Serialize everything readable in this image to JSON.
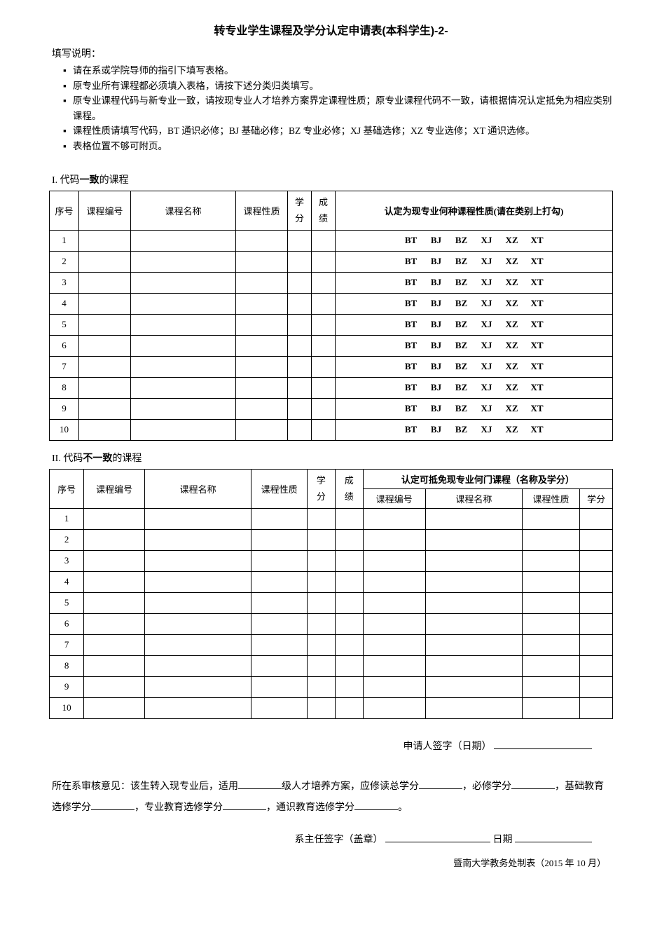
{
  "title": "转专业学生课程及学分认定申请表(本科学生)-2-",
  "instructionsLabel": "填写说明：",
  "instructions": [
    "请在系或学院导师的指引下填写表格。",
    "原专业所有课程都必须填入表格，请按下述分类归类填写。",
    "原专业课程代码与新专业一致，请按现专业人才培养方案界定课程性质；原专业课程代码不一致，请根据情况认定抵免为相应类别课程。",
    "课程性质请填写代码，BT 通识必修；BJ 基础必修；BZ 专业必修；XJ 基础选修；XZ 专业选修；XT 通识选修。",
    "表格位置不够可附页。"
  ],
  "section1": {
    "prefix": "I. 代码",
    "bold": "一致",
    "suffix": "的课程"
  },
  "table1": {
    "headers": {
      "seq": "序号",
      "courseNo": "课程编号",
      "courseName": "课程名称",
      "courseType": "课程性质",
      "credit": "学分",
      "grade": "成绩",
      "recognize": "认定为现专业何种课程性质(请在类别上打勾)"
    },
    "codes": [
      "BT",
      "BJ",
      "BZ",
      "XJ",
      "XZ",
      "XT"
    ],
    "rows": [
      1,
      2,
      3,
      4,
      5,
      6,
      7,
      8,
      9,
      10
    ]
  },
  "section2": {
    "prefix": "II. 代码",
    "bold": "不一致",
    "suffix": "的课程"
  },
  "table2": {
    "headers": {
      "seq": "序号",
      "courseNo": "课程编号",
      "courseName": "课程名称",
      "courseType": "课程性质",
      "credit": "学分",
      "grade": "成绩",
      "recognize": "认定可抵免现专业何门课程（名称及学分）",
      "subCourseNo": "课程编号",
      "subCourseName": "课程名称",
      "subCourseType": "课程性质",
      "subCredit": "学分"
    },
    "rows": [
      1,
      2,
      3,
      4,
      5,
      6,
      7,
      8,
      9,
      10
    ]
  },
  "applicantSign": "申请人签字（日期）",
  "review": {
    "part1": "所在系审核意见：该生转入现专业后，适用",
    "part2": "级人才培养方案，应修读总学分",
    "part3": "，必修学分",
    "part4": "，基础教育选修学分",
    "part5": "，专业教育选修学分",
    "part6": "，通识教育选修学分",
    "part7": "。"
  },
  "deanSign": "系主任签字（盖章）",
  "dateLabel": "日期",
  "footer": "暨南大学教务处制表（2015 年 10 月）",
  "colors": {
    "text": "#000000",
    "background": "#ffffff",
    "border": "#000000"
  },
  "layout": {
    "pageWidthPx": 945,
    "pageHeightPx": 1337
  }
}
